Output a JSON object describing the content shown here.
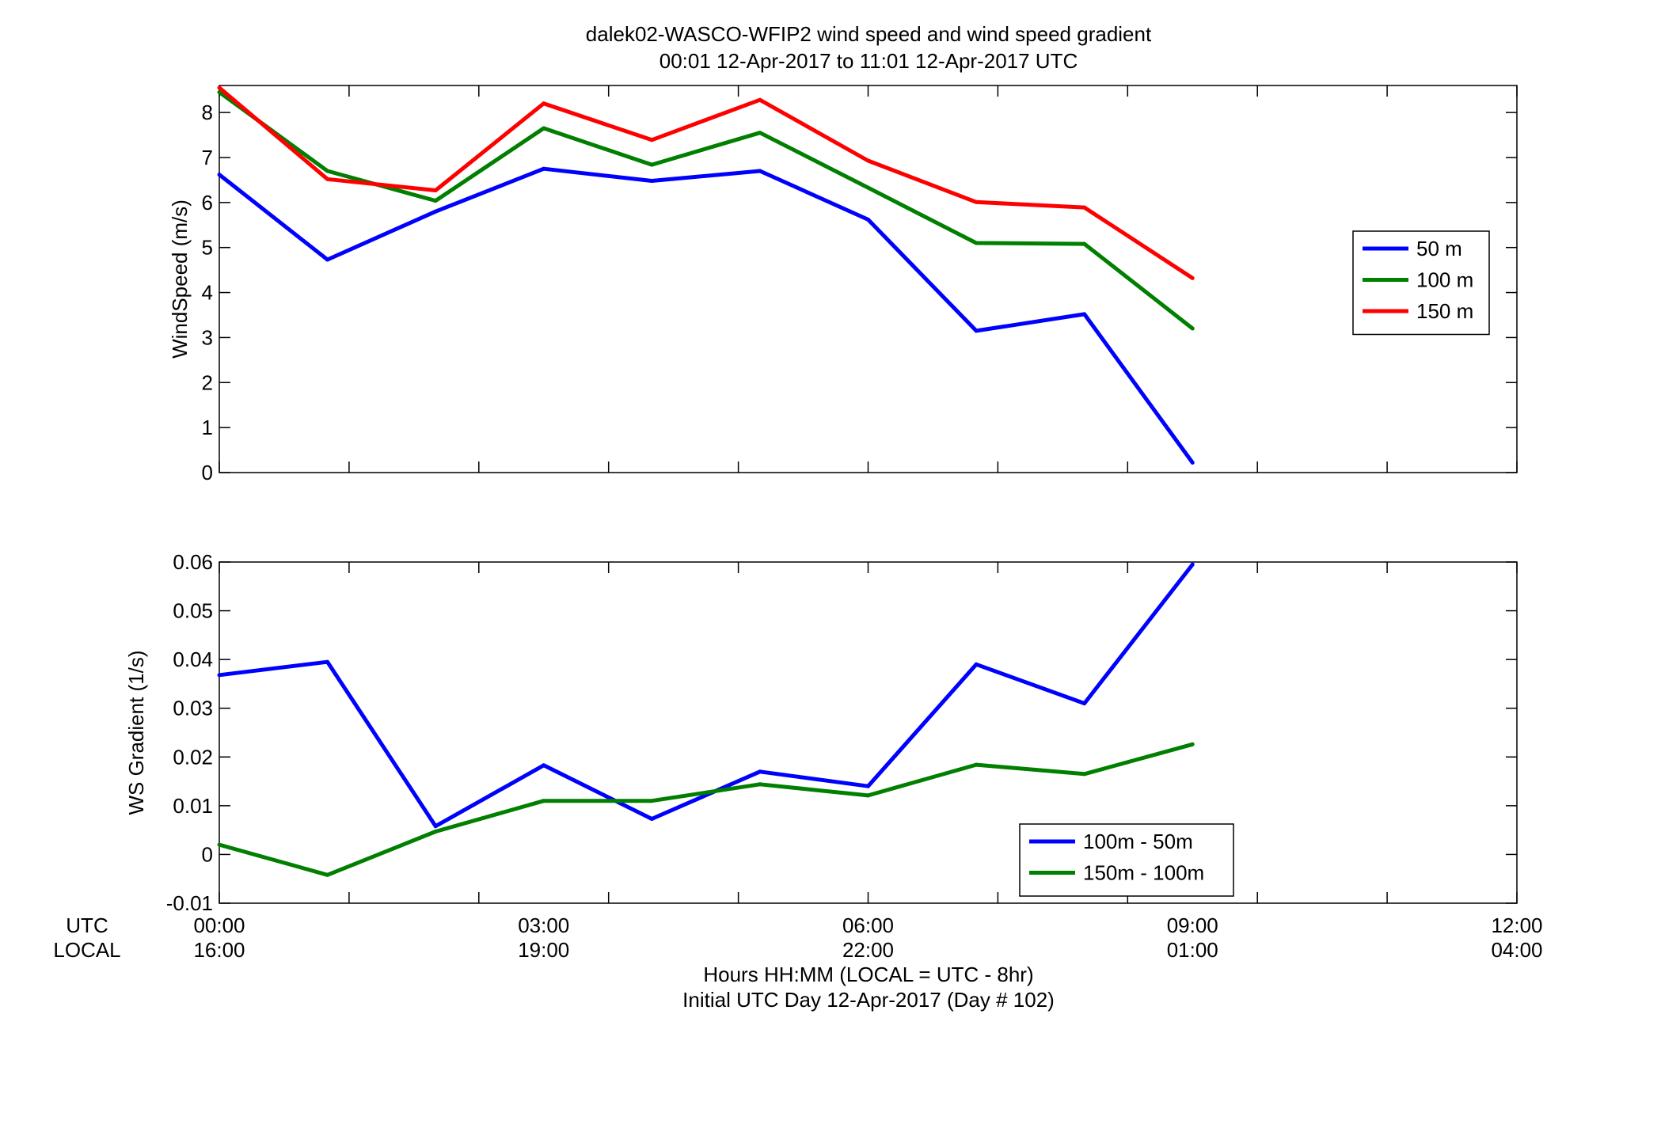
{
  "figure": {
    "title_line1": "dalek02-WASCO-WFIP2  wind speed and wind speed gradient",
    "title_line2": "00:01 12-Apr-2017 to 11:01 12-Apr-2017  UTC",
    "row_label_utc": "UTC",
    "row_label_local": "LOCAL",
    "xlabel_line1": "Hours HH:MM  (LOCAL = UTC - 8hr)",
    "xlabel_line2": "Initial UTC Day 12-Apr-2017 (Day # 102)",
    "x_ticks_utc": [
      "00:00",
      "03:00",
      "06:00",
      "09:00",
      "12:00"
    ],
    "x_ticks_local": [
      "16:00",
      "19:00",
      "22:00",
      "01:00",
      "04:00"
    ]
  },
  "chart_data": [
    {
      "type": "line",
      "ylabel": "WindSpeed (m/s)",
      "xlim": [
        0,
        12
      ],
      "ylim": [
        0,
        8.6
      ],
      "yticks": [
        0,
        1,
        2,
        3,
        4,
        5,
        6,
        7,
        8
      ],
      "ytick_labels": [
        "0",
        "1",
        "2",
        "3",
        "4",
        "5",
        "6",
        "7",
        "8"
      ],
      "x_tick_positions": [
        0,
        1.2,
        2.4,
        3.6,
        4.8,
        6,
        7.2,
        8.4,
        9.6,
        10.8,
        12
      ],
      "legend_position": "right",
      "x": [
        0,
        1,
        2,
        3,
        4,
        5,
        6,
        7,
        8,
        9
      ],
      "series": [
        {
          "name": "50 m",
          "color": "#0000ff",
          "values": [
            6.62,
            4.73,
            5.8,
            6.75,
            6.48,
            6.7,
            5.62,
            3.15,
            3.52,
            0.22
          ]
        },
        {
          "name": "100 m",
          "color": "#007f00",
          "values": [
            8.45,
            6.7,
            6.04,
            7.65,
            6.84,
            7.55,
            6.33,
            5.1,
            5.08,
            3.2
          ]
        },
        {
          "name": "150 m",
          "color": "#ff0000",
          "values": [
            8.55,
            6.52,
            6.27,
            8.2,
            7.39,
            8.28,
            6.93,
            6.01,
            5.89,
            4.32
          ]
        }
      ]
    },
    {
      "type": "line",
      "ylabel": "WS Gradient (1/s)",
      "xlim": [
        0,
        12
      ],
      "ylim": [
        -0.01,
        0.06
      ],
      "yticks": [
        -0.01,
        0,
        0.01,
        0.02,
        0.03,
        0.04,
        0.05,
        0.06
      ],
      "ytick_labels": [
        "-0.01",
        "0",
        "0.01",
        "0.02",
        "0.03",
        "0.04",
        "0.05",
        "0.06"
      ],
      "x_tick_positions": [
        0,
        1.2,
        2.4,
        3.6,
        4.8,
        6,
        7.2,
        8.4,
        9.6,
        10.8,
        12
      ],
      "legend_position": "bottom-right",
      "x": [
        0,
        1,
        2,
        3,
        4,
        5,
        6,
        7,
        8,
        9
      ],
      "series": [
        {
          "name": "100m - 50m",
          "color": "#0000ff",
          "values": [
            0.0368,
            0.0395,
            0.0058,
            0.0183,
            0.0073,
            0.017,
            0.014,
            0.039,
            0.031,
            0.0595
          ]
        },
        {
          "name": "150m - 100m",
          "color": "#007f00",
          "values": [
            0.002,
            -0.0042,
            0.0047,
            0.011,
            0.011,
            0.0144,
            0.0121,
            0.0184,
            0.0165,
            0.0226
          ]
        }
      ]
    }
  ]
}
